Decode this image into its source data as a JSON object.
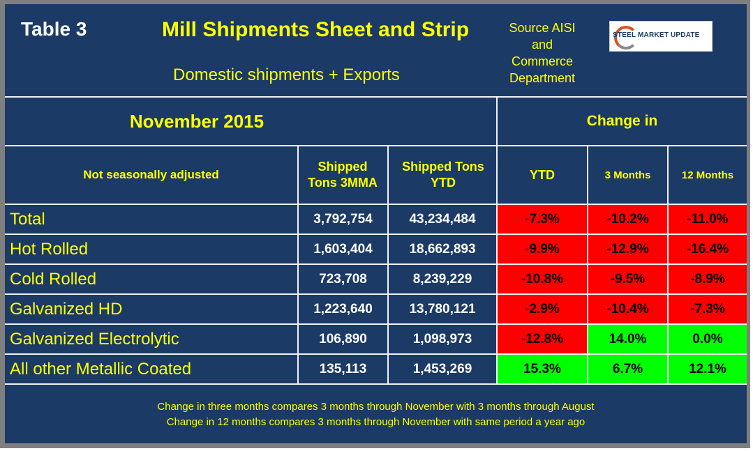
{
  "header": {
    "table_label": "Table 3",
    "title": "Mill Shipments Sheet and Strip",
    "subtitle": "Domestic shipments + Exports",
    "source": "Source AISI and Commerce Department",
    "logo_text": "STEEL MARKET UPDATE"
  },
  "table": {
    "period": "November 2015",
    "change_header": "Change in",
    "columns": {
      "label": "Not seasonally adjusted",
      "shipped_3mma": "Shipped Tons 3MMA",
      "shipped_ytd": "Shipped Tons YTD",
      "ytd": "YTD",
      "three_months": "3 Months",
      "twelve_months": "12 Months"
    },
    "rows": [
      {
        "label": "Total",
        "shipped_3mma": "3,792,754",
        "shipped_ytd": "43,234,484",
        "ytd": "-7.3%",
        "three_months": "-10.2%",
        "twelve_months": "-11.0%"
      },
      {
        "label": "Hot Rolled",
        "shipped_3mma": "1,603,404",
        "shipped_ytd": "18,662,893",
        "ytd": "-9.9%",
        "three_months": "-12.9%",
        "twelve_months": "-16.4%"
      },
      {
        "label": "Cold Rolled",
        "shipped_3mma": "723,708",
        "shipped_ytd": "8,239,229",
        "ytd": "-10.8%",
        "three_months": "-9.5%",
        "twelve_months": "-8.9%"
      },
      {
        "label": "Galvanized HD",
        "shipped_3mma": "1,223,640",
        "shipped_ytd": "13,780,121",
        "ytd": "-2.9%",
        "three_months": "-10.4%",
        "twelve_months": "-7.3%"
      },
      {
        "label": "Galvanized Electrolytic",
        "shipped_3mma": "106,890",
        "shipped_ytd": "1,098,973",
        "ytd": "-12.8%",
        "three_months": "14.0%",
        "twelve_months": "0.0%"
      },
      {
        "label": "All other Metallic Coated",
        "shipped_3mma": "135,113",
        "shipped_ytd": "1,453,269",
        "ytd": "15.3%",
        "three_months": "6.7%",
        "twelve_months": "12.1%"
      }
    ]
  },
  "footer": {
    "line1": "Change in three months compares 3 months through November with 3 months through August",
    "line2": "Change in 12 months compares 3 months through November with same period a year ago"
  },
  "colors": {
    "background": "#1b3a66",
    "negative": "#ff0000",
    "positive": "#00ff00",
    "accent_text": "#ffff00"
  }
}
